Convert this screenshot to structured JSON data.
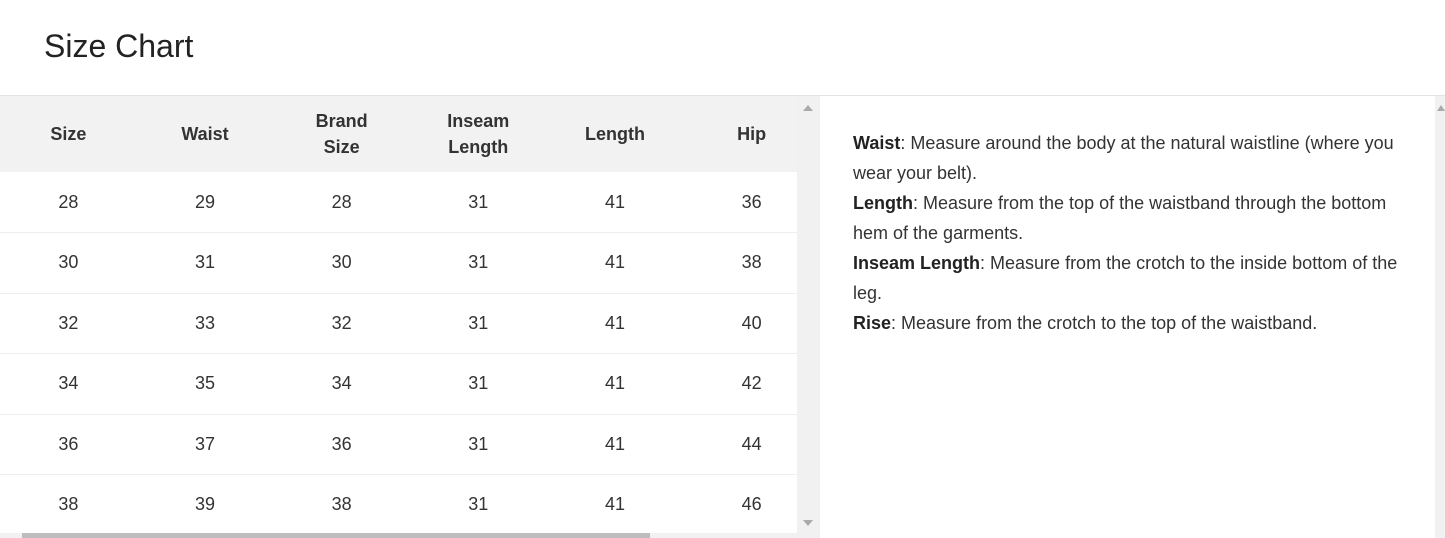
{
  "title": "Size Chart",
  "table": {
    "headers": [
      "Size",
      "Waist",
      "Brand\nSize",
      "Inseam\nLength",
      "Length",
      "Hip"
    ],
    "rows": [
      [
        "28",
        "29",
        "28",
        "31",
        "41",
        "36"
      ],
      [
        "30",
        "31",
        "30",
        "31",
        "41",
        "38"
      ],
      [
        "32",
        "33",
        "32",
        "31",
        "41",
        "40"
      ],
      [
        "34",
        "35",
        "34",
        "31",
        "41",
        "42"
      ],
      [
        "36",
        "37",
        "36",
        "31",
        "41",
        "44"
      ],
      [
        "38",
        "39",
        "38",
        "31",
        "41",
        "46"
      ]
    ]
  },
  "info": [
    {
      "term": "Waist",
      "text": ": Measure around the body at the natural waistline (where you wear your belt)."
    },
    {
      "term": "Length",
      "text": ": Measure from the top of the waistband through the bottom hem of the garments."
    },
    {
      "term": "Inseam Length",
      "text": ": Measure from the crotch to the inside bottom of the leg."
    },
    {
      "term": "Rise",
      "text": ": Measure from the crotch to the top of the waistband."
    }
  ]
}
